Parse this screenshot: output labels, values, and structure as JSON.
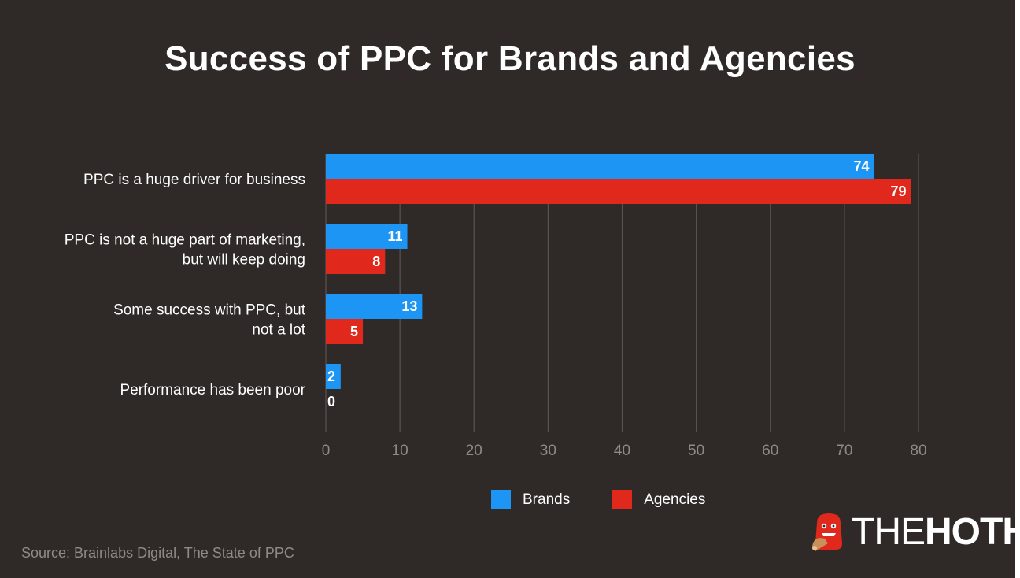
{
  "title": "Success of PPC for Brands and Agencies",
  "source": "Source: Brainlabs Digital, The State of PPC",
  "logo": {
    "part1": "THE",
    "part2": "HOTH"
  },
  "colors": {
    "brands": "#1d95f5",
    "agencies": "#e0291c",
    "background": "#2f2a28"
  },
  "legend": [
    {
      "name": "Brands",
      "color": "#1d95f5"
    },
    {
      "name": "Agencies",
      "color": "#e0291c"
    }
  ],
  "chart_data": {
    "type": "bar",
    "orientation": "horizontal",
    "categories": [
      [
        "PPC is a huge driver for business"
      ],
      [
        "PPC is not a huge part of marketing,",
        "but will keep doing"
      ],
      [
        "Some success with PPC, but",
        "not a lot"
      ],
      [
        "Performance has been poor"
      ]
    ],
    "series": [
      {
        "name": "Brands",
        "values": [
          74,
          11,
          13,
          2
        ]
      },
      {
        "name": "Agencies",
        "values": [
          79,
          8,
          5,
          0
        ]
      }
    ],
    "xlim": [
      0,
      80
    ],
    "xticks": [
      0,
      10,
      20,
      30,
      40,
      50,
      60,
      70,
      80
    ],
    "grid": true,
    "legend_position": "bottom"
  }
}
